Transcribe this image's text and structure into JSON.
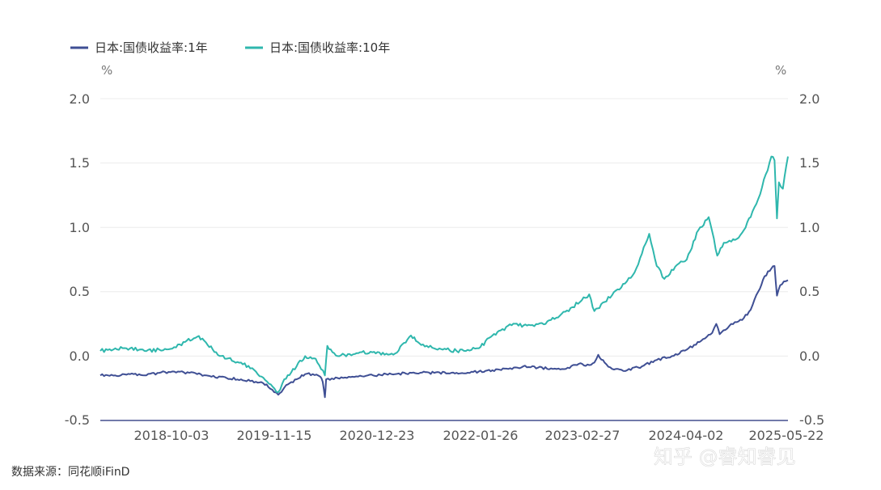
{
  "legend": [
    {
      "label": "日本:国债收益率:1年",
      "color": "#3f4f94"
    },
    {
      "label": "日本:国债收益率:10年",
      "color": "#2fb7ad"
    }
  ],
  "units": {
    "left": "%",
    "right": "%"
  },
  "source_note": "数据来源：同花顺iFinD",
  "watermark": "知乎 @睿知睿见",
  "chart_data": {
    "type": "line",
    "x_axis": {
      "type": "date",
      "min": "2017-09-01",
      "max": "2025-05-22",
      "ticks": [
        "2018-10-03",
        "2019-11-15",
        "2020-12-23",
        "2022-01-26",
        "2023-02-27",
        "2024-04-02",
        "2025-05-22"
      ]
    },
    "y_left": {
      "ticks": [
        "2.0",
        "1.5",
        "1.0",
        "0.5",
        "0.0",
        "-0.5"
      ],
      "min": -0.5,
      "max": 2.0
    },
    "y_right": {
      "ticks": [
        "2.0",
        "1.5",
        "1.0",
        "0.5",
        "0.0",
        "-0.5"
      ],
      "min": -0.5,
      "max": 2.0
    },
    "grid": true,
    "legend_position": "top-left",
    "series": [
      {
        "name": "日本:国债收益率:1年",
        "color": "#3f4f94",
        "points": [
          [
            "2017-09-01",
            -0.15
          ],
          [
            "2017-11-01",
            -0.15
          ],
          [
            "2018-01-01",
            -0.14
          ],
          [
            "2018-03-01",
            -0.15
          ],
          [
            "2018-05-01",
            -0.13
          ],
          [
            "2018-07-01",
            -0.12
          ],
          [
            "2018-09-01",
            -0.13
          ],
          [
            "2018-10-03",
            -0.14
          ],
          [
            "2018-12-01",
            -0.16
          ],
          [
            "2019-02-01",
            -0.17
          ],
          [
            "2019-04-01",
            -0.18
          ],
          [
            "2019-06-01",
            -0.2
          ],
          [
            "2019-07-15",
            -0.22
          ],
          [
            "2019-08-15",
            -0.28
          ],
          [
            "2019-09-01",
            -0.3
          ],
          [
            "2019-09-20",
            -0.26
          ],
          [
            "2019-10-10",
            -0.22
          ],
          [
            "2019-11-15",
            -0.18
          ],
          [
            "2019-12-20",
            -0.14
          ],
          [
            "2020-01-20",
            -0.14
          ],
          [
            "2020-02-20",
            -0.16
          ],
          [
            "2020-03-01",
            -0.2
          ],
          [
            "2020-03-10",
            -0.32
          ],
          [
            "2020-03-15",
            -0.18
          ],
          [
            "2020-05-01",
            -0.17
          ],
          [
            "2020-07-01",
            -0.16
          ],
          [
            "2020-09-01",
            -0.15
          ],
          [
            "2020-12-23",
            -0.14
          ],
          [
            "2021-03-01",
            -0.13
          ],
          [
            "2021-06-01",
            -0.13
          ],
          [
            "2021-09-01",
            -0.13
          ],
          [
            "2021-12-01",
            -0.12
          ],
          [
            "2022-01-26",
            -0.11
          ],
          [
            "2022-04-01",
            -0.1
          ],
          [
            "2022-06-01",
            -0.08
          ],
          [
            "2022-08-01",
            -0.09
          ],
          [
            "2022-10-01",
            -0.1
          ],
          [
            "2022-12-01",
            -0.09
          ],
          [
            "2023-01-15",
            -0.06
          ],
          [
            "2023-02-27",
            -0.07
          ],
          [
            "2023-03-20",
            -0.05
          ],
          [
            "2023-04-05",
            0.01
          ],
          [
            "2023-05-01",
            -0.05
          ],
          [
            "2023-06-01",
            -0.1
          ],
          [
            "2023-08-01",
            -0.11
          ],
          [
            "2023-10-01",
            -0.08
          ],
          [
            "2023-12-01",
            -0.03
          ],
          [
            "2024-02-01",
            0.0
          ],
          [
            "2024-04-02",
            0.05
          ],
          [
            "2024-06-01",
            0.12
          ],
          [
            "2024-07-15",
            0.18
          ],
          [
            "2024-08-01",
            0.25
          ],
          [
            "2024-08-15",
            0.17
          ],
          [
            "2024-10-01",
            0.25
          ],
          [
            "2024-11-15",
            0.28
          ],
          [
            "2024-12-20",
            0.36
          ],
          [
            "2025-01-20",
            0.5
          ],
          [
            "2025-02-15",
            0.62
          ],
          [
            "2025-03-15",
            0.68
          ],
          [
            "2025-03-28",
            0.7
          ],
          [
            "2025-04-07",
            0.47
          ],
          [
            "2025-04-20",
            0.55
          ],
          [
            "2025-05-05",
            0.58
          ],
          [
            "2025-05-22",
            0.59
          ]
        ]
      },
      {
        "name": "日本:国债收益率:10年",
        "color": "#2fb7ad",
        "points": [
          [
            "2017-09-01",
            0.04
          ],
          [
            "2017-11-01",
            0.06
          ],
          [
            "2018-01-01",
            0.06
          ],
          [
            "2018-03-01",
            0.04
          ],
          [
            "2018-05-01",
            0.05
          ],
          [
            "2018-07-01",
            0.07
          ],
          [
            "2018-08-15",
            0.11
          ],
          [
            "2018-10-03",
            0.15
          ],
          [
            "2018-11-01",
            0.12
          ],
          [
            "2018-12-20",
            0.03
          ],
          [
            "2019-02-01",
            -0.02
          ],
          [
            "2019-04-01",
            -0.05
          ],
          [
            "2019-06-01",
            -0.12
          ],
          [
            "2019-08-01",
            -0.22
          ],
          [
            "2019-09-01",
            -0.28
          ],
          [
            "2019-09-25",
            -0.18
          ],
          [
            "2019-11-15",
            -0.08
          ],
          [
            "2019-12-20",
            0.0
          ],
          [
            "2020-02-01",
            -0.02
          ],
          [
            "2020-03-10",
            -0.15
          ],
          [
            "2020-03-20",
            0.08
          ],
          [
            "2020-05-01",
            0.0
          ],
          [
            "2020-08-01",
            0.03
          ],
          [
            "2020-12-23",
            0.02
          ],
          [
            "2021-02-26",
            0.16
          ],
          [
            "2021-04-01",
            0.1
          ],
          [
            "2021-06-01",
            0.06
          ],
          [
            "2021-09-01",
            0.04
          ],
          [
            "2021-12-01",
            0.06
          ],
          [
            "2022-01-26",
            0.16
          ],
          [
            "2022-03-01",
            0.2
          ],
          [
            "2022-04-15",
            0.24
          ],
          [
            "2022-07-01",
            0.24
          ],
          [
            "2022-09-01",
            0.25
          ],
          [
            "2022-12-20",
            0.38
          ],
          [
            "2023-02-27",
            0.48
          ],
          [
            "2023-03-20",
            0.35
          ],
          [
            "2023-05-01",
            0.42
          ],
          [
            "2023-07-31",
            0.58
          ],
          [
            "2023-09-01",
            0.65
          ],
          [
            "2023-10-31",
            0.95
          ],
          [
            "2023-12-01",
            0.7
          ],
          [
            "2024-01-01",
            0.6
          ],
          [
            "2024-03-01",
            0.72
          ],
          [
            "2024-04-02",
            0.75
          ],
          [
            "2024-05-20",
            0.98
          ],
          [
            "2024-07-01",
            1.08
          ],
          [
            "2024-08-05",
            0.78
          ],
          [
            "2024-09-01",
            0.88
          ],
          [
            "2024-11-01",
            0.92
          ],
          [
            "2024-12-20",
            1.08
          ],
          [
            "2025-01-20",
            1.22
          ],
          [
            "2025-03-15",
            1.55
          ],
          [
            "2025-03-28",
            1.52
          ],
          [
            "2025-04-07",
            1.07
          ],
          [
            "2025-04-15",
            1.35
          ],
          [
            "2025-05-01",
            1.3
          ],
          [
            "2025-05-22",
            1.55
          ]
        ]
      }
    ]
  }
}
